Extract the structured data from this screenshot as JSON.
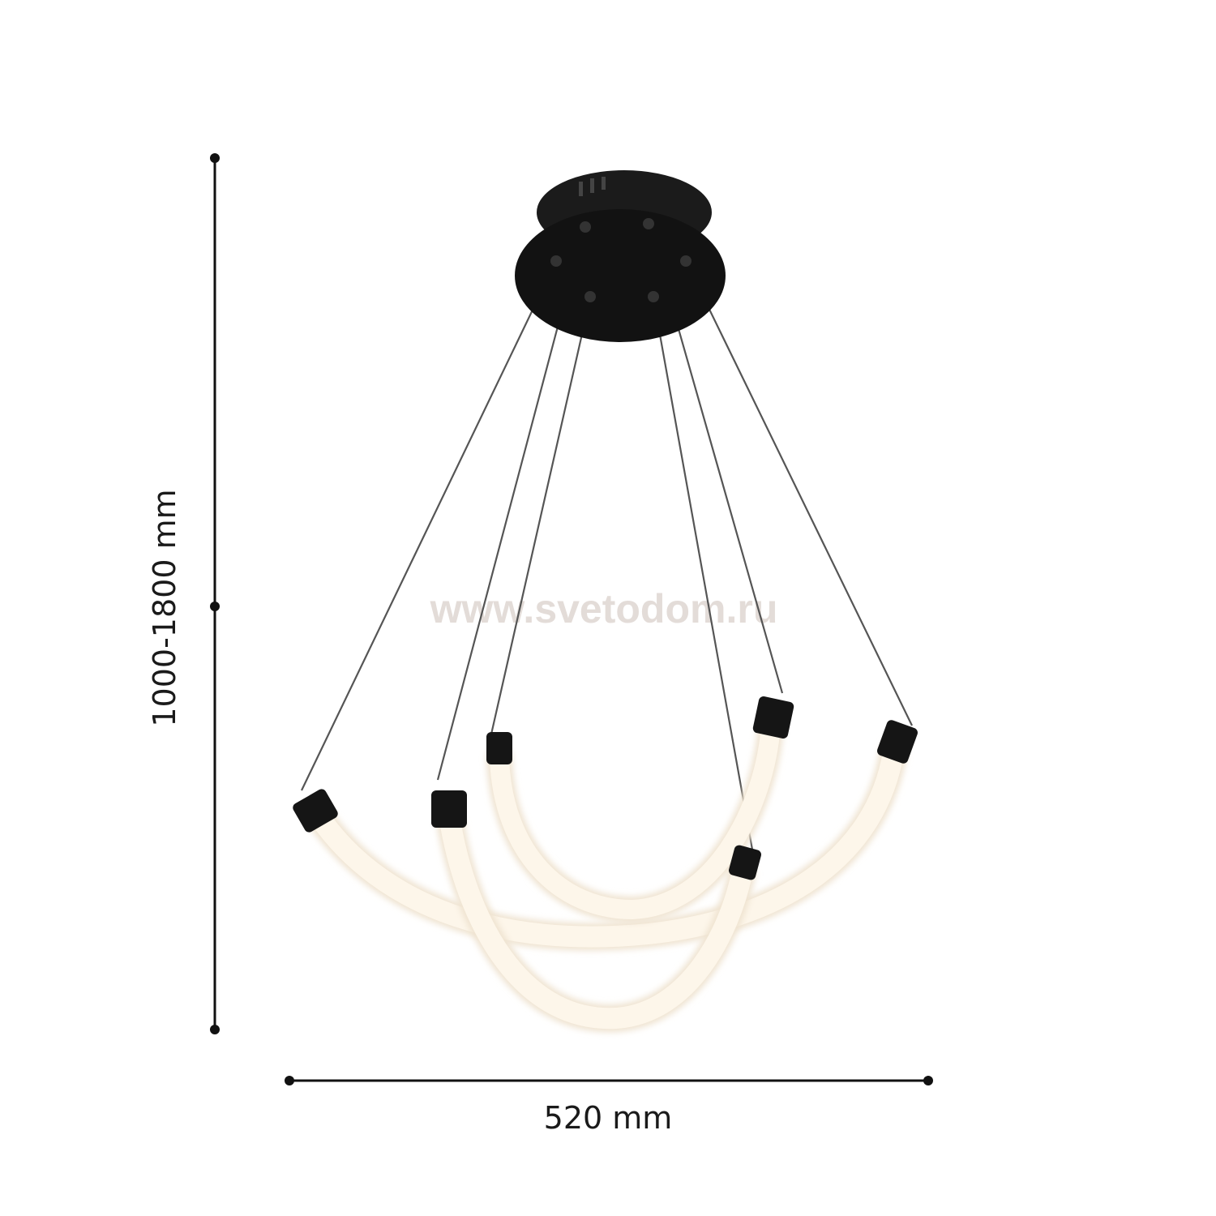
{
  "dimensions": {
    "height_label": "1000-1800 mm",
    "width_label": "520 mm"
  },
  "watermark": "www.svetodom.ru",
  "colors": {
    "fixture": "#141414",
    "tube_glow": "#fdf6ea",
    "dimension_line": "#111111",
    "watermark": "#e3dcd8"
  }
}
